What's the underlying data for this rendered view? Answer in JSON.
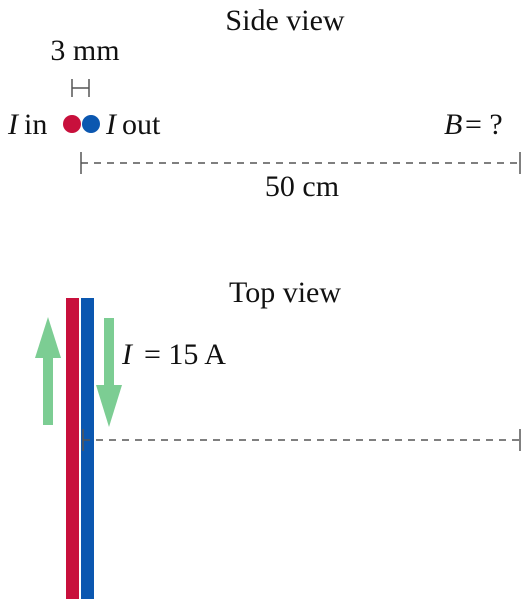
{
  "side_view": {
    "title": "Side view",
    "gap_label": "3 mm",
    "current_in_label": "in",
    "current_out_label": "out",
    "current_symbol": "I",
    "field_query": "B = ?",
    "field_symbol": "B",
    "field_rest": " = ?",
    "distance_label": "50 cm"
  },
  "top_view": {
    "title": "Top view",
    "current_label": "= 15 A",
    "current_symbol": "I"
  },
  "colors": {
    "wire_in": "#c8103c",
    "wire_out": "#0b57b0",
    "arrow": "#7ccd93",
    "dim_line": "#555555",
    "text": "#111111"
  }
}
